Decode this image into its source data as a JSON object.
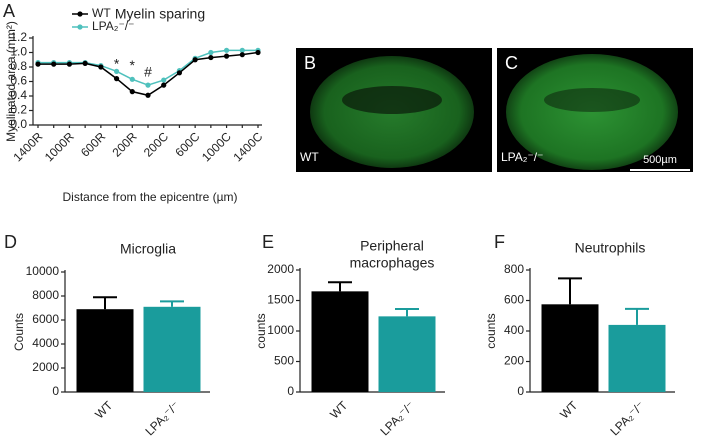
{
  "chart_data": [
    {
      "type": "line",
      "panel_label": "A",
      "title": "Myelin sparing",
      "x_label": "Distance from the epicentre (µm)",
      "y_label": "Myelinated area (mm²)",
      "categories": [
        "1400R",
        null,
        "1000R",
        null,
        "600R",
        null,
        "200R",
        null,
        "200C",
        null,
        "600C",
        null,
        "1000C",
        null,
        "1400C"
      ],
      "series": [
        {
          "name": "WT",
          "color": "#000000",
          "values": [
            0.84,
            0.84,
            0.84,
            0.85,
            0.8,
            0.64,
            0.46,
            0.41,
            0.55,
            0.72,
            0.9,
            0.93,
            0.95,
            0.97,
            1.0
          ]
        },
        {
          "name": "LPA₂⁻/⁻",
          "color": "#4fc1bd",
          "values": [
            0.86,
            0.86,
            0.86,
            0.86,
            0.82,
            0.74,
            0.63,
            0.55,
            0.62,
            0.75,
            0.92,
            1.0,
            1.03,
            1.03,
            1.03
          ]
        }
      ],
      "annotations": [
        "*",
        "*",
        "#"
      ],
      "ylim": [
        0.0,
        1.2
      ],
      "yticks": [
        {
          "value": 0,
          "label": "0.0"
        },
        0.2,
        0.4,
        0.6,
        0.8,
        {
          "value": 1,
          "label": "1.0"
        },
        1.2
      ]
    },
    {
      "type": "bar",
      "panel_label": "D",
      "title": [
        "Microglia"
      ],
      "y_label": "Counts",
      "categories": [
        "WT",
        "LPA₂⁻/⁻"
      ],
      "values": [
        6900,
        7100
      ],
      "errors": [
        1000,
        450
      ],
      "colors": [
        "#000000",
        "#1a9c9c"
      ],
      "ylim": [
        0,
        10000
      ],
      "yticks": [
        0,
        2000,
        4000,
        6000,
        8000,
        10000
      ]
    },
    {
      "type": "bar",
      "panel_label": "E",
      "title": [
        "Peripheral",
        "macrophages"
      ],
      "y_label": "counts",
      "categories": [
        "WT",
        "LPA₂⁻/⁻"
      ],
      "values": [
        1650,
        1240
      ],
      "errors": [
        150,
        120
      ],
      "colors": [
        "#000000",
        "#1a9c9c"
      ],
      "ylim": [
        0,
        2000
      ],
      "yticks": [
        0,
        500,
        1000,
        1500,
        2000
      ]
    },
    {
      "type": "bar",
      "panel_label": "F",
      "title": [
        "Neutrophils"
      ],
      "y_label": "counts",
      "categories": [
        "WT",
        "LPA₂⁻/⁻"
      ],
      "values": [
        575,
        440
      ],
      "errors": [
        170,
        105
      ],
      "colors": [
        "#000000",
        "#1a9c9c"
      ],
      "ylim": [
        0,
        800
      ],
      "yticks": [
        0,
        200,
        400,
        600,
        800
      ]
    }
  ],
  "images": [
    {
      "panel_label": "B",
      "label": "WT"
    },
    {
      "panel_label": "C",
      "label": "LPA₂⁻/⁻",
      "scale_bar": "500µm"
    }
  ]
}
